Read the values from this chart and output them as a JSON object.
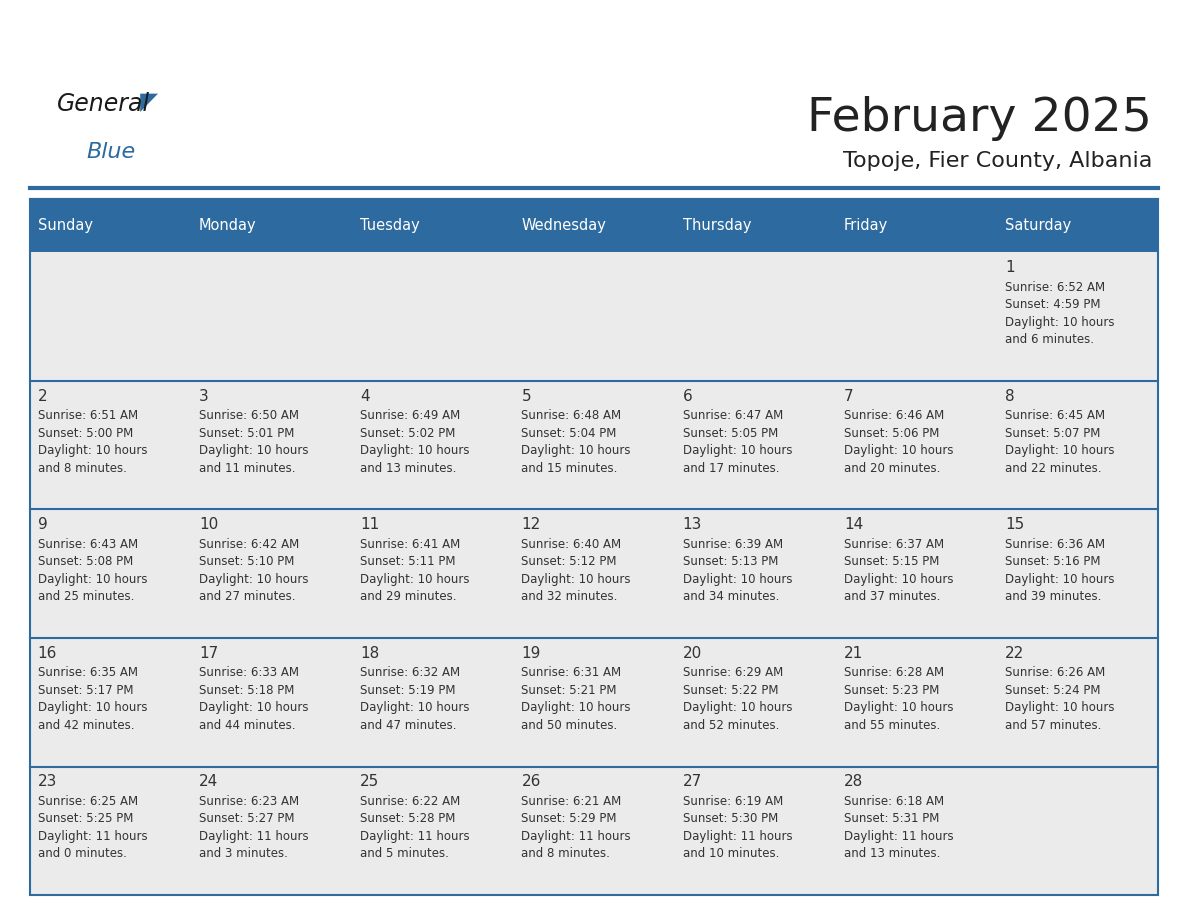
{
  "title": "February 2025",
  "subtitle": "Topoje, Fier County, Albania",
  "header_bg_color": "#2D6A9F",
  "header_text_color": "#FFFFFF",
  "cell_bg_color": "#EBEBEB",
  "border_color": "#2D6A9F",
  "day_number_color": "#333333",
  "cell_text_color": "#333333",
  "title_color": "#222222",
  "subtitle_color": "#222222",
  "day_headers": [
    "Sunday",
    "Monday",
    "Tuesday",
    "Wednesday",
    "Thursday",
    "Friday",
    "Saturday"
  ],
  "weeks": [
    [
      {
        "day": null,
        "text": ""
      },
      {
        "day": null,
        "text": ""
      },
      {
        "day": null,
        "text": ""
      },
      {
        "day": null,
        "text": ""
      },
      {
        "day": null,
        "text": ""
      },
      {
        "day": null,
        "text": ""
      },
      {
        "day": 1,
        "text": "Sunrise: 6:52 AM\nSunset: 4:59 PM\nDaylight: 10 hours\nand 6 minutes."
      }
    ],
    [
      {
        "day": 2,
        "text": "Sunrise: 6:51 AM\nSunset: 5:00 PM\nDaylight: 10 hours\nand 8 minutes."
      },
      {
        "day": 3,
        "text": "Sunrise: 6:50 AM\nSunset: 5:01 PM\nDaylight: 10 hours\nand 11 minutes."
      },
      {
        "day": 4,
        "text": "Sunrise: 6:49 AM\nSunset: 5:02 PM\nDaylight: 10 hours\nand 13 minutes."
      },
      {
        "day": 5,
        "text": "Sunrise: 6:48 AM\nSunset: 5:04 PM\nDaylight: 10 hours\nand 15 minutes."
      },
      {
        "day": 6,
        "text": "Sunrise: 6:47 AM\nSunset: 5:05 PM\nDaylight: 10 hours\nand 17 minutes."
      },
      {
        "day": 7,
        "text": "Sunrise: 6:46 AM\nSunset: 5:06 PM\nDaylight: 10 hours\nand 20 minutes."
      },
      {
        "day": 8,
        "text": "Sunrise: 6:45 AM\nSunset: 5:07 PM\nDaylight: 10 hours\nand 22 minutes."
      }
    ],
    [
      {
        "day": 9,
        "text": "Sunrise: 6:43 AM\nSunset: 5:08 PM\nDaylight: 10 hours\nand 25 minutes."
      },
      {
        "day": 10,
        "text": "Sunrise: 6:42 AM\nSunset: 5:10 PM\nDaylight: 10 hours\nand 27 minutes."
      },
      {
        "day": 11,
        "text": "Sunrise: 6:41 AM\nSunset: 5:11 PM\nDaylight: 10 hours\nand 29 minutes."
      },
      {
        "day": 12,
        "text": "Sunrise: 6:40 AM\nSunset: 5:12 PM\nDaylight: 10 hours\nand 32 minutes."
      },
      {
        "day": 13,
        "text": "Sunrise: 6:39 AM\nSunset: 5:13 PM\nDaylight: 10 hours\nand 34 minutes."
      },
      {
        "day": 14,
        "text": "Sunrise: 6:37 AM\nSunset: 5:15 PM\nDaylight: 10 hours\nand 37 minutes."
      },
      {
        "day": 15,
        "text": "Sunrise: 6:36 AM\nSunset: 5:16 PM\nDaylight: 10 hours\nand 39 minutes."
      }
    ],
    [
      {
        "day": 16,
        "text": "Sunrise: 6:35 AM\nSunset: 5:17 PM\nDaylight: 10 hours\nand 42 minutes."
      },
      {
        "day": 17,
        "text": "Sunrise: 6:33 AM\nSunset: 5:18 PM\nDaylight: 10 hours\nand 44 minutes."
      },
      {
        "day": 18,
        "text": "Sunrise: 6:32 AM\nSunset: 5:19 PM\nDaylight: 10 hours\nand 47 minutes."
      },
      {
        "day": 19,
        "text": "Sunrise: 6:31 AM\nSunset: 5:21 PM\nDaylight: 10 hours\nand 50 minutes."
      },
      {
        "day": 20,
        "text": "Sunrise: 6:29 AM\nSunset: 5:22 PM\nDaylight: 10 hours\nand 52 minutes."
      },
      {
        "day": 21,
        "text": "Sunrise: 6:28 AM\nSunset: 5:23 PM\nDaylight: 10 hours\nand 55 minutes."
      },
      {
        "day": 22,
        "text": "Sunrise: 6:26 AM\nSunset: 5:24 PM\nDaylight: 10 hours\nand 57 minutes."
      }
    ],
    [
      {
        "day": 23,
        "text": "Sunrise: 6:25 AM\nSunset: 5:25 PM\nDaylight: 11 hours\nand 0 minutes."
      },
      {
        "day": 24,
        "text": "Sunrise: 6:23 AM\nSunset: 5:27 PM\nDaylight: 11 hours\nand 3 minutes."
      },
      {
        "day": 25,
        "text": "Sunrise: 6:22 AM\nSunset: 5:28 PM\nDaylight: 11 hours\nand 5 minutes."
      },
      {
        "day": 26,
        "text": "Sunrise: 6:21 AM\nSunset: 5:29 PM\nDaylight: 11 hours\nand 8 minutes."
      },
      {
        "day": 27,
        "text": "Sunrise: 6:19 AM\nSunset: 5:30 PM\nDaylight: 11 hours\nand 10 minutes."
      },
      {
        "day": 28,
        "text": "Sunrise: 6:18 AM\nSunset: 5:31 PM\nDaylight: 11 hours\nand 13 minutes."
      },
      {
        "day": null,
        "text": ""
      }
    ]
  ]
}
